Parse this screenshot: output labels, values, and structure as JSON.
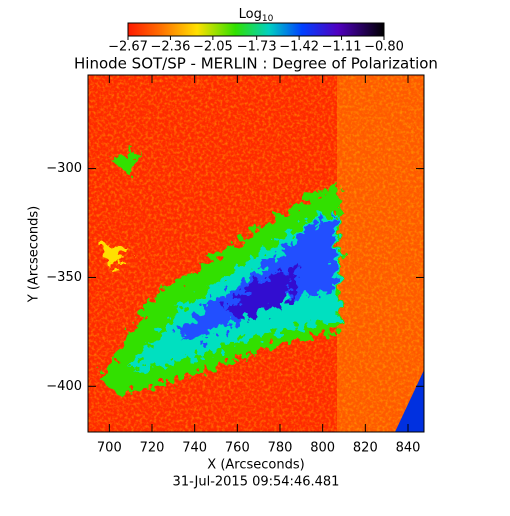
{
  "chart_data": {
    "type": "heatmap",
    "title": "Hinode SOT/SP - MERLIN : Degree of Polarization",
    "xlabel": "X (Arcseconds)",
    "ylabel": "Y (Arcseconds)",
    "footer": "31-Jul-2015 09:54:46.481",
    "colorbar_label": "Log",
    "colorbar_label_sub": "10",
    "colorbar_lim": [
      -2.67,
      -0.8
    ],
    "colorbar_ticks": [
      {
        "value": -2.67,
        "label": "−2.67"
      },
      {
        "value": -2.36,
        "label": "−2.36"
      },
      {
        "value": -2.05,
        "label": "−2.05"
      },
      {
        "value": -1.73,
        "label": "−1.73"
      },
      {
        "value": -1.42,
        "label": "−1.42"
      },
      {
        "value": -1.11,
        "label": "−1.11"
      },
      {
        "value": -0.8,
        "label": "−0.80"
      }
    ],
    "xlim": [
      690,
      847.5
    ],
    "xticks": [
      700,
      720,
      740,
      760,
      780,
      800,
      820,
      840
    ],
    "ylim": [
      -421,
      -257
    ],
    "yticks": [
      {
        "value": -300,
        "label": "−300"
      },
      {
        "value": -350,
        "label": "−350"
      },
      {
        "value": -400,
        "label": "−400"
      }
    ]
  }
}
